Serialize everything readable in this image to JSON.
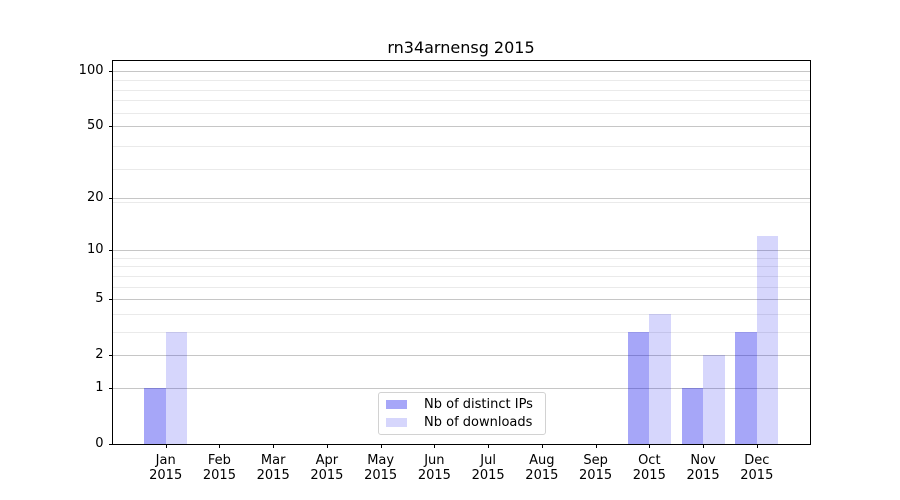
{
  "title": "rn34arnensg 2015",
  "chart_data": {
    "type": "bar",
    "title": "rn34arnensg 2015",
    "categories": [
      "Jan",
      "Feb",
      "Mar",
      "Apr",
      "May",
      "Jun",
      "Jul",
      "Aug",
      "Sep",
      "Oct",
      "Nov",
      "Dec"
    ],
    "category_year": "2015",
    "series": [
      {
        "name": "Nb of distinct IPs",
        "color": "rgba(0,0,235,0.35)",
        "values": [
          1,
          0,
          0,
          0,
          0,
          0,
          0,
          0,
          0,
          3,
          1,
          3
        ]
      },
      {
        "name": "Nb of downloads",
        "color": "rgba(0,0,235,0.16)",
        "values": [
          3,
          0,
          0,
          0,
          0,
          0,
          0,
          0,
          0,
          4,
          2,
          12
        ]
      }
    ],
    "ylabel": "",
    "xlabel": "",
    "y_scale": "log10(1+v)",
    "y_ticks": [
      0,
      1,
      2,
      5,
      10,
      20,
      50,
      100
    ],
    "y_ticks_minor": [
      3,
      4,
      6,
      7,
      8,
      9,
      19,
      29,
      39,
      59,
      69,
      79,
      89
    ],
    "ylim": [
      0,
      113
    ],
    "xlim": [
      -0.99,
      11.99
    ],
    "bar_width_units": 0.4,
    "grid": true,
    "legend_position": "lower center"
  },
  "legend": {
    "entries": [
      {
        "label": "Nb of distinct IPs",
        "color": "rgba(0,0,235,0.35)"
      },
      {
        "label": "Nb of downloads",
        "color": "rgba(0,0,235,0.16)"
      }
    ]
  },
  "colors": {
    "background": "#ffffff",
    "spine": "#000000",
    "grid_major": "#c6c6c6",
    "grid_minor": "#eaeaea",
    "tick_text": "#000000"
  }
}
